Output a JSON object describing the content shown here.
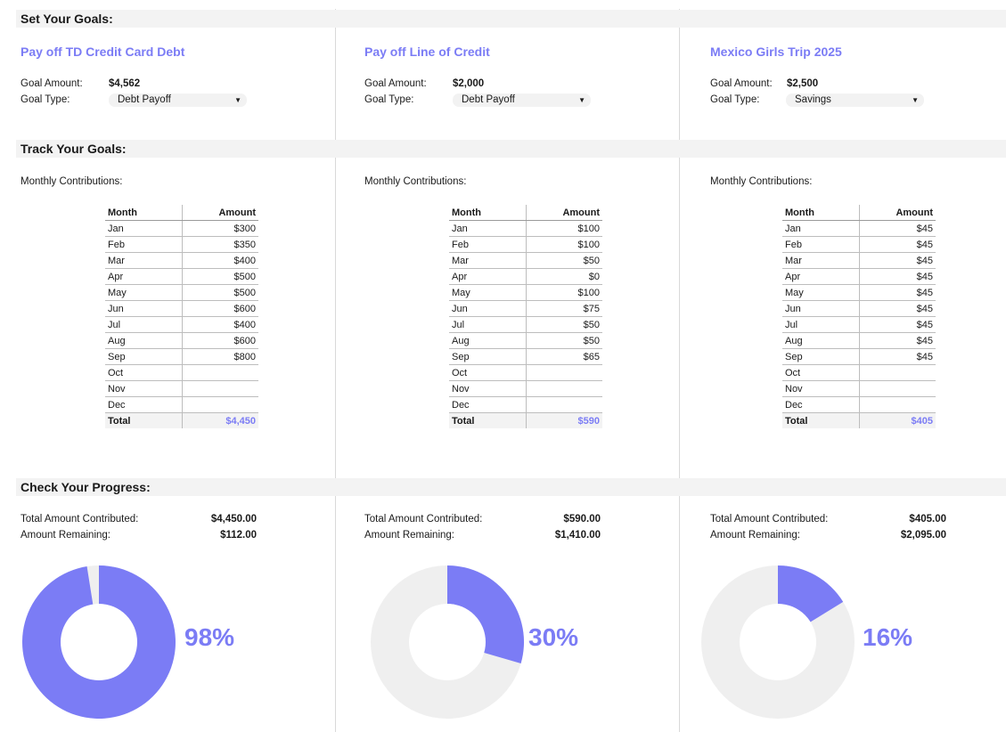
{
  "sections": {
    "set_goals": "Set Your Goals:",
    "track_goals": "Track Your Goals:",
    "check_progress": "Check Your Progress:"
  },
  "labels": {
    "goal_amount": "Goal Amount:",
    "goal_type": "Goal Type:",
    "monthly_contributions": "Monthly Contributions:",
    "month_header": "Month",
    "amount_header": "Amount",
    "total": "Total",
    "total_contributed": "Total Amount Contributed:",
    "amount_remaining": "Amount Remaining:"
  },
  "colors": {
    "accent": "#7b7cf5",
    "band": "#f3f3f3",
    "donut_empty": "#efefef"
  },
  "goals": [
    {
      "title": "Pay off TD Credit Card Debt",
      "goal_amount": "$4,562",
      "goal_type": "Debt Payoff",
      "months": [
        "Jan",
        "Feb",
        "Mar",
        "Apr",
        "May",
        "Jun",
        "Jul",
        "Aug",
        "Sep",
        "Oct",
        "Nov",
        "Dec"
      ],
      "amounts": [
        "$300",
        "$350",
        "$400",
        "$500",
        "$500",
        "$600",
        "$400",
        "$600",
        "$800",
        "",
        "",
        ""
      ],
      "total": "$4,450",
      "total_contributed": "$4,450.00",
      "remaining": "$112.00",
      "progress": 0.975,
      "percent_label": "98%"
    },
    {
      "title": "Pay off Line of Credit",
      "goal_amount": "$2,000",
      "goal_type": "Debt Payoff",
      "months": [
        "Jan",
        "Feb",
        "Mar",
        "Apr",
        "May",
        "Jun",
        "Jul",
        "Aug",
        "Sep",
        "Oct",
        "Nov",
        "Dec"
      ],
      "amounts": [
        "$100",
        "$100",
        "$50",
        "$0",
        "$100",
        "$75",
        "$50",
        "$50",
        "$65",
        "",
        "",
        ""
      ],
      "total": "$590",
      "total_contributed": "$590.00",
      "remaining": "$1,410.00",
      "progress": 0.295,
      "percent_label": "30%"
    },
    {
      "title": "Mexico Girls Trip 2025",
      "goal_amount": "$2,500",
      "goal_type": "Savings",
      "months": [
        "Jan",
        "Feb",
        "Mar",
        "Apr",
        "May",
        "Jun",
        "Jul",
        "Aug",
        "Sep",
        "Oct",
        "Nov",
        "Dec"
      ],
      "amounts": [
        "$45",
        "$45",
        "$45",
        "$45",
        "$45",
        "$45",
        "$45",
        "$45",
        "$45",
        "",
        "",
        ""
      ],
      "total": "$405",
      "total_contributed": "$405.00",
      "remaining": "$2,095.00",
      "progress": 0.162,
      "percent_label": "16%"
    }
  ]
}
